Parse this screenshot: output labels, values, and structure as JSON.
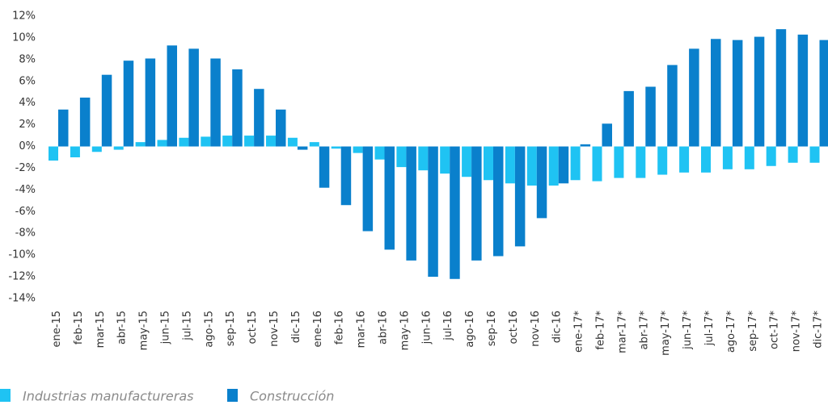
{
  "chart_data": {
    "type": "bar",
    "categories": [
      "ene-15",
      "feb-15",
      "mar-15",
      "abr-15",
      "may-15",
      "jun-15",
      "jul-15",
      "ago-15",
      "sep-15",
      "oct-15",
      "nov-15",
      "dic-15",
      "ene-16",
      "feb-16",
      "mar-16",
      "abr-16",
      "may-16",
      "jun-16",
      "jul-16",
      "ago-16",
      "sep-16",
      "oct-16",
      "nov-16",
      "dic-16",
      "ene-17*",
      "feb-17*",
      "mar-17*",
      "abr-17*",
      "may-17*",
      "jun-17*",
      "jul-17*",
      "ago-17*",
      "sep-17*",
      "oct-17*",
      "nov-17*",
      "dic-17*"
    ],
    "series": [
      {
        "name": "Industrias manufactureras",
        "color": "#1fc3f3",
        "values": [
          -1.3,
          -1.0,
          -0.5,
          -0.3,
          0.4,
          0.6,
          0.8,
          0.9,
          1.0,
          1.0,
          1.0,
          0.8,
          0.4,
          -0.2,
          -0.6,
          -1.2,
          -1.9,
          -2.2,
          -2.5,
          -2.8,
          -3.1,
          -3.4,
          -3.6,
          -3.6,
          -3.1,
          -3.2,
          -2.9,
          -2.9,
          -2.6,
          -2.4,
          -2.4,
          -2.1,
          -2.1,
          -1.8,
          -1.5,
          -1.5
        ]
      },
      {
        "name": "Construcción",
        "color": "#0a80cc",
        "values": [
          3.4,
          4.5,
          6.6,
          7.9,
          8.1,
          9.3,
          9.0,
          8.1,
          7.1,
          5.3,
          3.4,
          -0.3,
          -3.8,
          -5.4,
          -7.8,
          -9.5,
          -10.5,
          -12.0,
          -12.2,
          -10.5,
          -10.1,
          -9.2,
          -6.6,
          -3.4,
          0.2,
          2.1,
          5.1,
          5.5,
          7.5,
          9.0,
          9.9,
          9.8,
          10.1,
          10.8,
          10.3,
          9.8
        ]
      }
    ],
    "ylim": [
      -14,
      12
    ],
    "yticks": [
      {
        "value": -14,
        "label": "-14%"
      },
      {
        "value": -12,
        "label": "-12%"
      },
      {
        "value": -10,
        "label": "-10%"
      },
      {
        "value": -8,
        "label": "-8%"
      },
      {
        "value": -6,
        "label": "-6%"
      },
      {
        "value": -4,
        "label": "-4%"
      },
      {
        "value": -2,
        "label": "-2%"
      },
      {
        "value": 0,
        "label": "0%"
      },
      {
        "value": 2,
        "label": "2%"
      },
      {
        "value": 4,
        "label": "4%"
      },
      {
        "value": 6,
        "label": "6%"
      },
      {
        "value": 8,
        "label": "8%"
      },
      {
        "value": 10,
        "label": "10%"
      },
      {
        "value": 12,
        "label": "12%"
      }
    ],
    "grid": false,
    "legend": "bottom-left"
  }
}
